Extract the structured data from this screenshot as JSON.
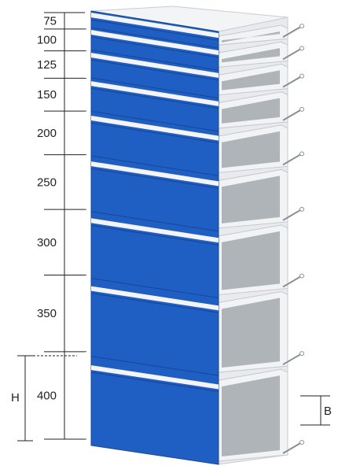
{
  "drawer_heights": [
    "75",
    "100",
    "125",
    "150",
    "200",
    "250",
    "300",
    "350",
    "400"
  ],
  "dimension_letters": {
    "height": "H",
    "depth": "B"
  },
  "colors": {
    "drawer_front": "#1f5fc4",
    "drawer_front_dark": "#16489a",
    "handle": "#f4f4f4",
    "cabinet_side": "#e6e7ea",
    "tray_inner": "#9ea4aa",
    "tray_rim": "#f2f3f5",
    "rail": "#8a8f95",
    "dimension_line": "#222222"
  }
}
